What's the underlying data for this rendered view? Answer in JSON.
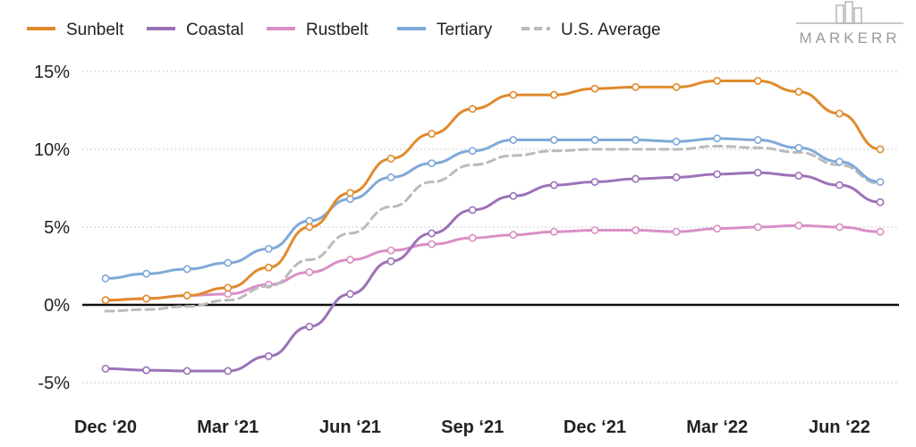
{
  "brand": {
    "logo_text": "MARKERR",
    "logo_icon": "building-skyline-icon"
  },
  "chart_data": {
    "type": "line",
    "title": "",
    "xlabel": "",
    "ylabel": "",
    "x": [
      "2020-12",
      "2021-01",
      "2021-02",
      "2021-03",
      "2021-04",
      "2021-05",
      "2021-06",
      "2021-07",
      "2021-08",
      "2021-09",
      "2021-10",
      "2021-11",
      "2021-12",
      "2022-01",
      "2022-02",
      "2022-03",
      "2022-04",
      "2022-05",
      "2022-06",
      "2022-07"
    ],
    "x_tick_labels": [
      {
        "x": "2020-12",
        "label": "Dec ‘20"
      },
      {
        "x": "2021-03",
        "label": "Mar ‘21"
      },
      {
        "x": "2021-06",
        "label": "Jun ‘21"
      },
      {
        "x": "2021-09",
        "label": "Sep ‘21"
      },
      {
        "x": "2021-12",
        "label": "Dec ‘21"
      },
      {
        "x": "2022-03",
        "label": "Mar ‘22"
      },
      {
        "x": "2022-06",
        "label": "Jun ‘22"
      }
    ],
    "y_ticks": [
      {
        "value": 15,
        "label": "15%"
      },
      {
        "value": 10,
        "label": "10%"
      },
      {
        "value": 5,
        "label": "5%"
      },
      {
        "value": 0,
        "label": "0%"
      },
      {
        "value": -5,
        "label": "-5%"
      }
    ],
    "ylim": [
      -6,
      16
    ],
    "grid": true,
    "legend_position": "top-left",
    "series": [
      {
        "name": "Sunbelt",
        "color": "#e08a2e",
        "style": "solid",
        "markers": true,
        "values": [
          0.3,
          0.4,
          0.6,
          1.1,
          2.4,
          5.0,
          7.2,
          9.4,
          11.0,
          12.6,
          13.5,
          13.5,
          13.9,
          14.0,
          14.0,
          14.4,
          14.4,
          13.7,
          12.3,
          10.0
        ]
      },
      {
        "name": "Coastal",
        "color": "#9c72b8",
        "style": "solid",
        "markers": true,
        "values": [
          -4.1,
          -4.2,
          -4.25,
          -4.25,
          -3.3,
          -1.4,
          0.7,
          2.8,
          4.6,
          6.1,
          7.0,
          7.7,
          7.9,
          8.1,
          8.2,
          8.4,
          8.5,
          8.3,
          7.7,
          6.6
        ]
      },
      {
        "name": "Rustbelt",
        "color": "#d98fc6",
        "style": "solid",
        "markers": true,
        "values": [
          0.3,
          0.4,
          0.6,
          0.7,
          1.3,
          2.1,
          2.9,
          3.5,
          3.9,
          4.3,
          4.5,
          4.7,
          4.8,
          4.8,
          4.7,
          4.9,
          5.0,
          5.1,
          5.0,
          4.7
        ]
      },
      {
        "name": "Tertiary",
        "color": "#7fa9d8",
        "style": "solid",
        "markers": true,
        "values": [
          1.7,
          2.0,
          2.3,
          2.7,
          3.6,
          5.4,
          6.8,
          8.2,
          9.1,
          9.9,
          10.6,
          10.6,
          10.6,
          10.6,
          10.5,
          10.7,
          10.6,
          10.1,
          9.2,
          7.9
        ]
      },
      {
        "name": "U.S. Average",
        "color": "#bbbbbb",
        "style": "dashed",
        "markers": false,
        "values": [
          -0.4,
          -0.3,
          -0.1,
          0.3,
          1.2,
          2.9,
          4.6,
          6.3,
          7.9,
          9.0,
          9.6,
          9.9,
          10.0,
          10.0,
          10.0,
          10.2,
          10.1,
          9.8,
          9.0,
          7.8
        ]
      }
    ]
  }
}
